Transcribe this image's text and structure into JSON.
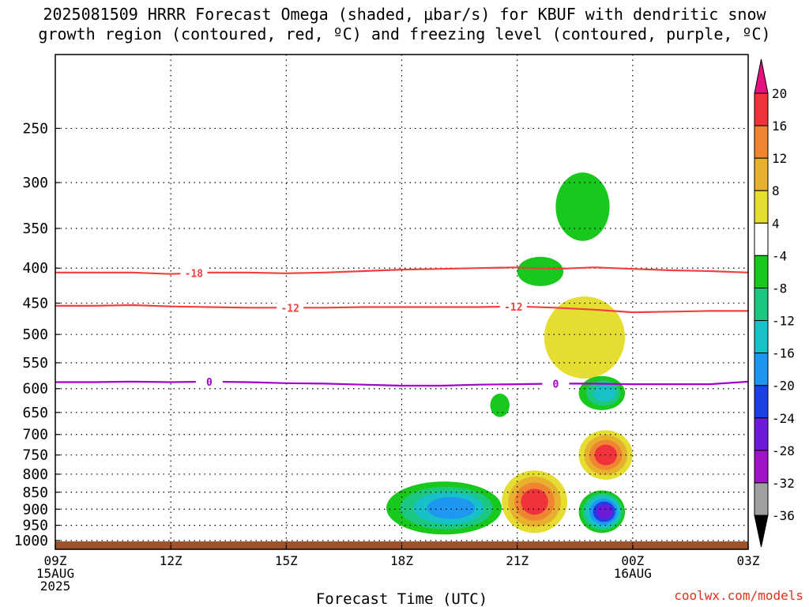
{
  "title_line1": "2025081509 HRRR Forecast Omega (shaded, μbar/s) for KBUF with dendritic snow",
  "title_line2": "growth region (contoured, red, ºC) and freezing level (contoured, purple, ºC)",
  "credit": "coolwx.com/models",
  "chart_data": {
    "type": "heatmap",
    "xlabel": "Forecast Time (UTC)",
    "x_range_hours": [
      0,
      18
    ],
    "y_scale": "log",
    "y_range_hpa": [
      1030,
      195
    ],
    "y_ticks": [
      250,
      300,
      350,
      400,
      450,
      500,
      550,
      600,
      650,
      700,
      750,
      800,
      850,
      900,
      950,
      1000
    ],
    "x_ticks": [
      {
        "h": 0,
        "lines": [
          "09Z",
          "15AUG",
          "2025"
        ]
      },
      {
        "h": 3,
        "lines": [
          "12Z"
        ]
      },
      {
        "h": 6,
        "lines": [
          "15Z"
        ]
      },
      {
        "h": 9,
        "lines": [
          "18Z"
        ]
      },
      {
        "h": 12,
        "lines": [
          "21Z"
        ]
      },
      {
        "h": 15,
        "lines": [
          "00Z",
          "16AUG"
        ]
      },
      {
        "h": 18,
        "lines": [
          "03Z"
        ]
      }
    ],
    "ground_top_hpa": 1003,
    "colorbar": {
      "labels": [
        "20",
        "16",
        "12",
        "8",
        "4",
        "-4",
        "-8",
        "-12",
        "-16",
        "-20",
        "-24",
        "-28",
        "-32",
        "-36"
      ],
      "bins": [
        {
          "lo": 16,
          "hi": 20,
          "color": "#f0323c"
        },
        {
          "lo": 12,
          "hi": 16,
          "color": "#ef8431"
        },
        {
          "lo": 8,
          "hi": 12,
          "color": "#e7b02f"
        },
        {
          "lo": 4,
          "hi": 8,
          "color": "#e6dd33"
        },
        {
          "lo": -4,
          "hi": 4,
          "color": "#ffffff"
        },
        {
          "lo": -8,
          "hi": -4,
          "color": "#18c81c"
        },
        {
          "lo": -12,
          "hi": -8,
          "color": "#1cc782"
        },
        {
          "lo": -16,
          "hi": -12,
          "color": "#16c2c8"
        },
        {
          "lo": -20,
          "hi": -16,
          "color": "#1f96f0"
        },
        {
          "lo": -24,
          "hi": -20,
          "color": "#1c40e4"
        },
        {
          "lo": -28,
          "hi": -24,
          "color": "#6c1cd8"
        },
        {
          "lo": -32,
          "hi": -28,
          "color": "#a014c8"
        },
        {
          "lo": -36,
          "hi": -32,
          "color": "#a0a0a0"
        }
      ],
      "over_color": "#e6117f",
      "under_color": "#000000"
    },
    "contours": [
      {
        "value": "-18",
        "color": "#f04040",
        "label_at_hours": [
          3.6
        ],
        "points": [
          [
            0,
            406
          ],
          [
            1,
            406
          ],
          [
            2,
            406
          ],
          [
            3,
            408
          ],
          [
            4,
            406
          ],
          [
            5,
            406
          ],
          [
            6,
            407
          ],
          [
            7,
            406
          ],
          [
            8,
            404
          ],
          [
            9,
            402
          ],
          [
            10,
            401
          ],
          [
            11,
            400
          ],
          [
            12,
            399
          ],
          [
            13,
            401
          ],
          [
            14,
            399
          ],
          [
            15,
            401
          ],
          [
            16,
            403
          ],
          [
            17,
            404
          ],
          [
            18,
            406
          ]
        ]
      },
      {
        "value": "-12",
        "color": "#f04040",
        "label_at_hours": [
          6.1,
          11.9
        ],
        "points": [
          [
            0,
            454
          ],
          [
            1,
            454
          ],
          [
            2,
            453
          ],
          [
            3,
            455
          ],
          [
            4,
            456
          ],
          [
            5,
            457
          ],
          [
            6,
            457
          ],
          [
            7,
            457
          ],
          [
            8,
            456
          ],
          [
            9,
            456
          ],
          [
            10,
            456
          ],
          [
            11,
            456
          ],
          [
            12,
            455
          ],
          [
            13,
            457
          ],
          [
            14,
            460
          ],
          [
            15,
            464
          ],
          [
            16,
            463
          ],
          [
            17,
            462
          ],
          [
            18,
            462
          ]
        ]
      },
      {
        "value": "0",
        "color": "#a000c8",
        "label_at_hours": [
          4.0,
          13.0
        ],
        "points": [
          [
            0,
            587
          ],
          [
            1,
            587
          ],
          [
            2,
            586
          ],
          [
            3,
            587
          ],
          [
            4,
            586
          ],
          [
            5,
            587
          ],
          [
            6,
            589
          ],
          [
            7,
            590
          ],
          [
            8,
            592
          ],
          [
            9,
            594
          ],
          [
            10,
            594
          ],
          [
            11,
            592
          ],
          [
            12,
            591
          ],
          [
            13,
            590
          ],
          [
            14,
            590
          ],
          [
            15,
            591
          ],
          [
            16,
            591
          ],
          [
            17,
            591
          ],
          [
            18,
            586
          ]
        ]
      }
    ],
    "omega_features": [
      {
        "kind": "descent",
        "hours": [
          13.0,
          14.4
        ],
        "hpa": [
          290,
          365
        ],
        "levels": [
          -4
        ]
      },
      {
        "kind": "descent",
        "hours": [
          12.0,
          13.2
        ],
        "hpa": [
          385,
          425
        ],
        "levels": [
          -4
        ]
      },
      {
        "kind": "ascent",
        "hours": [
          12.7,
          14.8
        ],
        "hpa": [
          440,
          580
        ],
        "levels": [
          4
        ]
      },
      {
        "kind": "descent",
        "hours": [
          11.3,
          11.8
        ],
        "hpa": [
          610,
          660
        ],
        "levels": [
          -4
        ]
      },
      {
        "kind": "descent",
        "hours": [
          13.6,
          14.8
        ],
        "hpa": [
          575,
          645
        ],
        "levels": [
          -4,
          -8,
          -12
        ]
      },
      {
        "kind": "ascent",
        "hours": [
          13.6,
          15.0
        ],
        "hpa": [
          690,
          815
        ],
        "levels": [
          4,
          8,
          12,
          16
        ]
      },
      {
        "kind": "descent",
        "hours": [
          8.6,
          11.6
        ],
        "hpa": [
          820,
          980
        ],
        "levels": [
          -4,
          -8,
          -12,
          -16
        ]
      },
      {
        "kind": "ascent",
        "hours": [
          11.6,
          13.3
        ],
        "hpa": [
          790,
          975
        ],
        "levels": [
          4,
          8,
          12,
          16
        ]
      },
      {
        "kind": "descent",
        "hours": [
          13.6,
          14.8
        ],
        "hpa": [
          845,
          975
        ],
        "levels": [
          -4,
          -8,
          -12,
          -16,
          -20,
          -24
        ]
      }
    ]
  }
}
